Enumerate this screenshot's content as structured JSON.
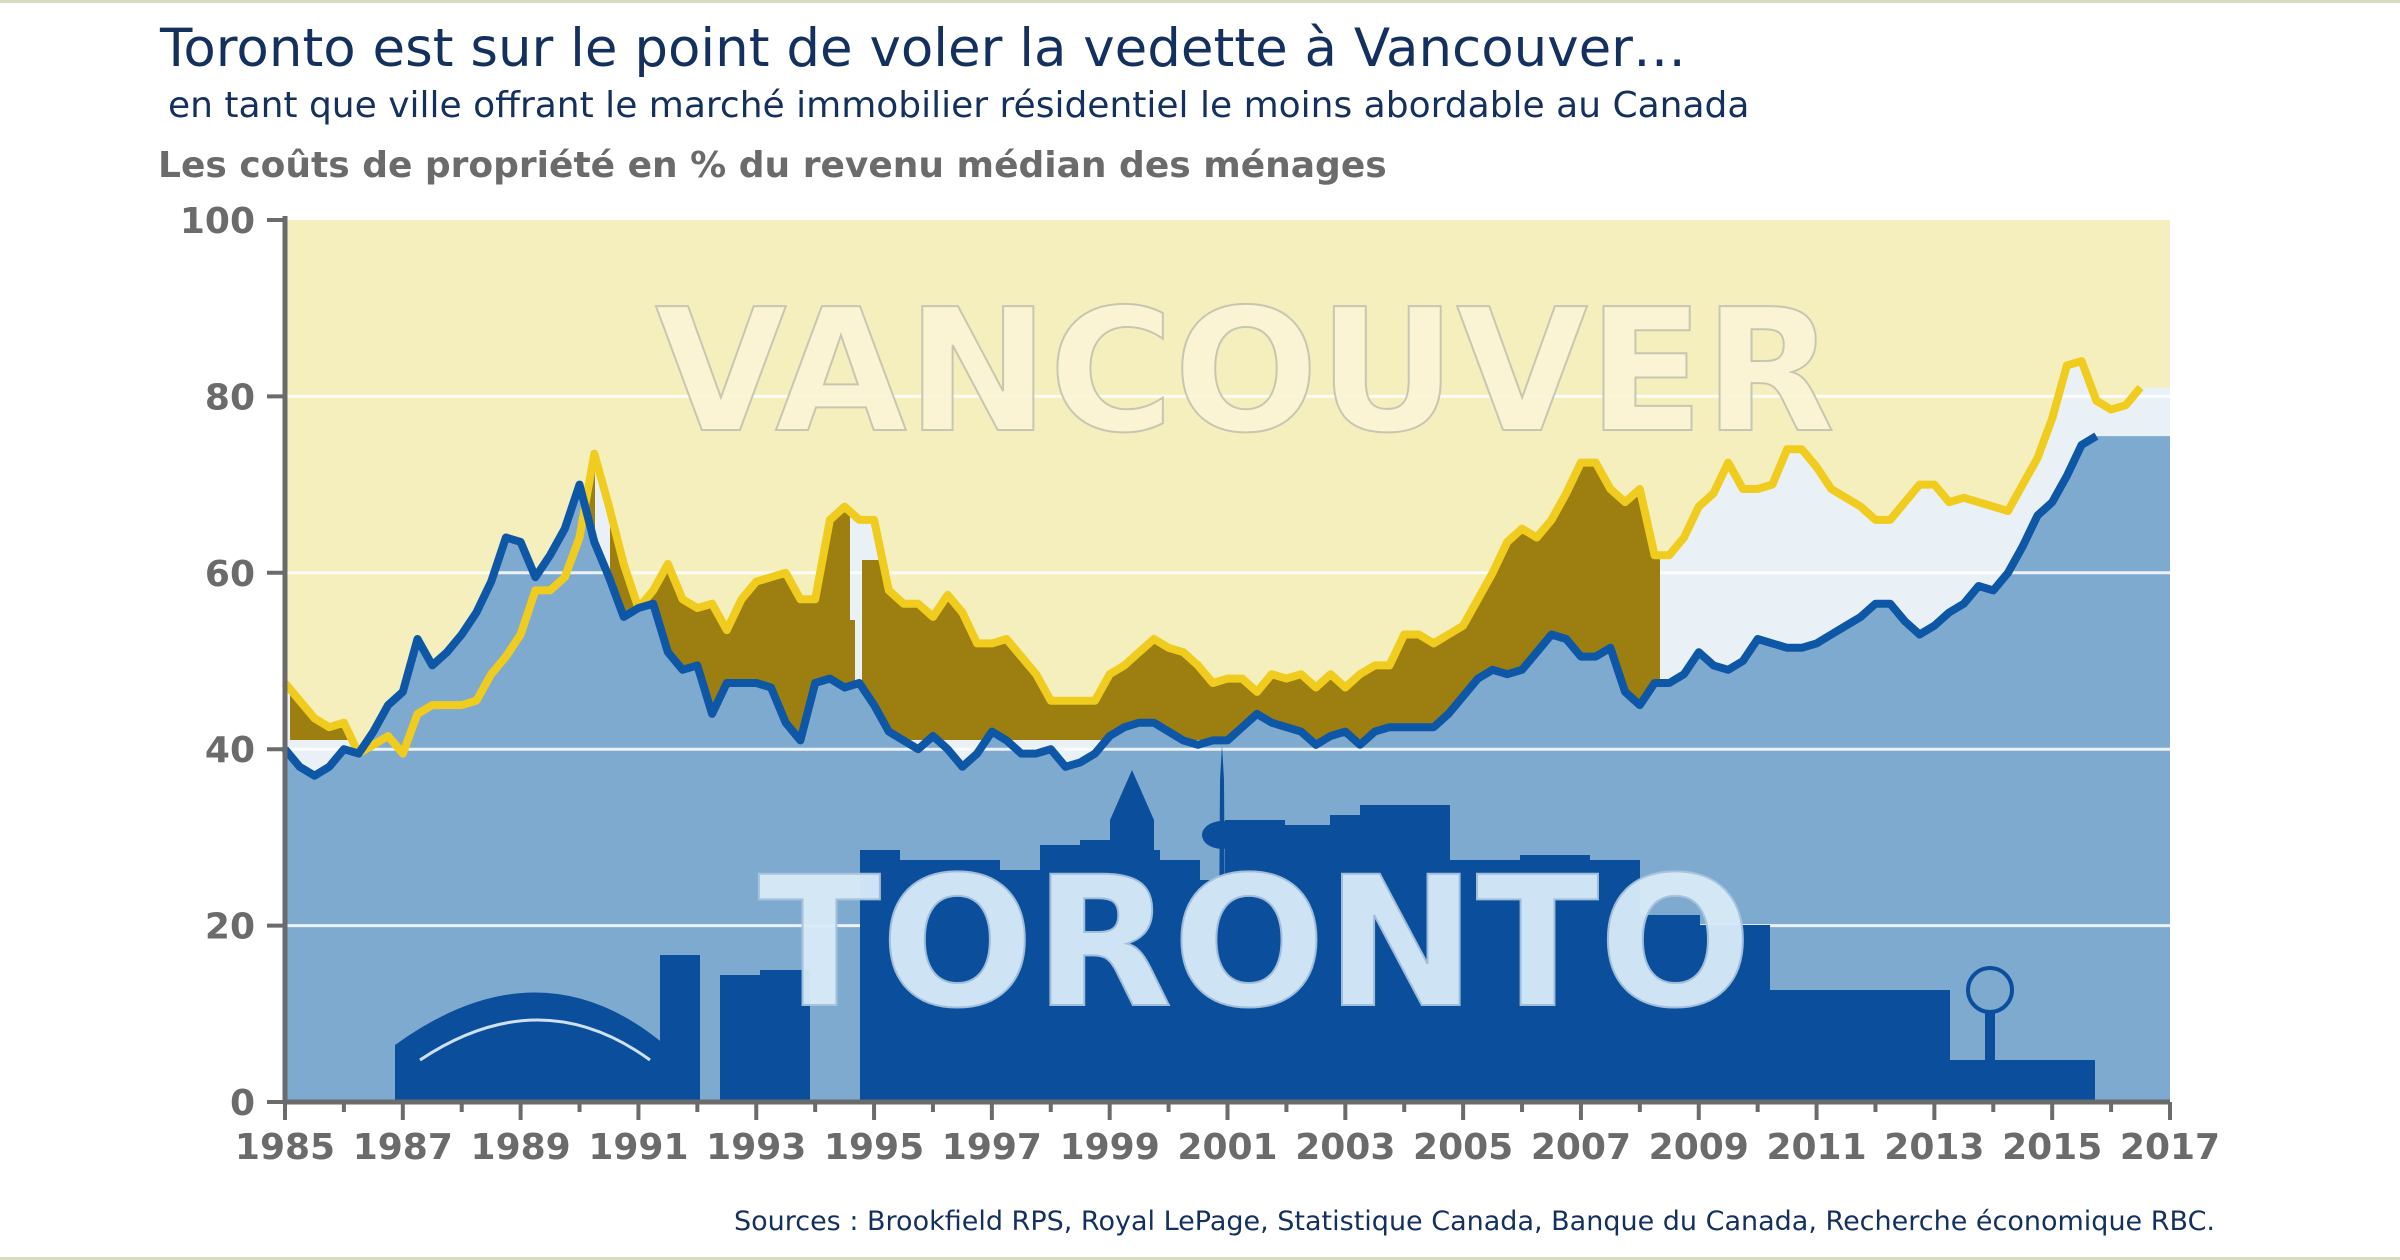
{
  "title": "Toronto est sur le point de voler la vedette à Vancouver…",
  "subtitle": "en tant que ville offrant le marché immobilier résidentiel le moins abordable au Canada",
  "source": "Sources : Brookfield RPS, Royal LePage, Statistique Canada, Banque du Canada, Recherche économique RBC.",
  "colors": {
    "vancouver_line": "#f0cc1e",
    "toronto_line": "#0d57a6",
    "top_band": "#f5eebd",
    "mid_band": "#eaf1f6",
    "toronto_area": "#7faad0",
    "vancouver_skyline": "#9c7f10",
    "toronto_skyline": "#0b4f9c"
  },
  "chart_data": {
    "type": "line",
    "title": "Toronto est sur le point de voler la vedette à Vancouver…",
    "subtitle": "en tant que ville offrant le marché immobilier résidentiel le moins abordable au Canada",
    "ylabel": "Les coûts de propriété en % du revenu médian des ménages",
    "xlabel": "",
    "ylim": [
      0,
      100
    ],
    "xlim": [
      1985,
      2017
    ],
    "yticks": [
      0,
      20,
      40,
      60,
      80,
      100
    ],
    "xticks": [
      1985,
      1987,
      1989,
      1991,
      1993,
      1995,
      1997,
      1999,
      2001,
      2003,
      2005,
      2007,
      2009,
      2011,
      2013,
      2015,
      2017
    ],
    "grid": true,
    "series": [
      {
        "name": "VANCOUVER",
        "points": [
          [
            1985.0,
            47.5
          ],
          [
            1985.25,
            45.5
          ],
          [
            1985.5,
            43.5
          ],
          [
            1985.75,
            42.5
          ],
          [
            1986.0,
            43.0
          ],
          [
            1986.25,
            39.5
          ],
          [
            1986.5,
            40.5
          ],
          [
            1986.75,
            41.5
          ],
          [
            1987.0,
            39.5
          ],
          [
            1987.25,
            44.0
          ],
          [
            1987.5,
            45.0
          ],
          [
            1987.75,
            45.0
          ],
          [
            1988.0,
            45.0
          ],
          [
            1988.25,
            45.5
          ],
          [
            1988.5,
            48.5
          ],
          [
            1988.75,
            50.5
          ],
          [
            1989.0,
            53.0
          ],
          [
            1989.25,
            58.0
          ],
          [
            1989.5,
            58.0
          ],
          [
            1989.75,
            59.5
          ],
          [
            1990.0,
            64.0
          ],
          [
            1990.25,
            73.5
          ],
          [
            1990.5,
            67.5
          ],
          [
            1990.75,
            61.0
          ],
          [
            1991.0,
            56.0
          ],
          [
            1991.25,
            58.0
          ],
          [
            1991.5,
            61.0
          ],
          [
            1991.75,
            57.0
          ],
          [
            1992.0,
            56.0
          ],
          [
            1992.25,
            56.5
          ],
          [
            1992.5,
            53.5
          ],
          [
            1992.75,
            57.0
          ],
          [
            1993.0,
            59.0
          ],
          [
            1993.25,
            59.5
          ],
          [
            1993.5,
            60.0
          ],
          [
            1993.75,
            57.0
          ],
          [
            1994.0,
            57.0
          ],
          [
            1994.25,
            66.0
          ],
          [
            1994.5,
            67.5
          ],
          [
            1994.75,
            66.0
          ],
          [
            1995.0,
            66.0
          ],
          [
            1995.25,
            58.0
          ],
          [
            1995.5,
            56.5
          ],
          [
            1995.75,
            56.5
          ],
          [
            1996.0,
            55.0
          ],
          [
            1996.25,
            57.5
          ],
          [
            1996.5,
            55.5
          ],
          [
            1996.75,
            52.0
          ],
          [
            1997.0,
            52.0
          ],
          [
            1997.25,
            52.5
          ],
          [
            1997.5,
            50.5
          ],
          [
            1997.75,
            48.5
          ],
          [
            1998.0,
            45.5
          ],
          [
            1998.25,
            45.5
          ],
          [
            1998.5,
            45.5
          ],
          [
            1998.75,
            45.5
          ],
          [
            1999.0,
            48.5
          ],
          [
            1999.25,
            49.5
          ],
          [
            1999.5,
            51.0
          ],
          [
            1999.75,
            52.5
          ],
          [
            2000.0,
            51.5
          ],
          [
            2000.25,
            51.0
          ],
          [
            2000.5,
            49.5
          ],
          [
            2000.75,
            47.5
          ],
          [
            2001.0,
            48.0
          ],
          [
            2001.25,
            48.0
          ],
          [
            2001.5,
            46.5
          ],
          [
            2001.75,
            48.5
          ],
          [
            2002.0,
            48.0
          ],
          [
            2002.25,
            48.5
          ],
          [
            2002.5,
            47.0
          ],
          [
            2002.75,
            48.5
          ],
          [
            2003.0,
            47.0
          ],
          [
            2003.25,
            48.5
          ],
          [
            2003.5,
            49.5
          ],
          [
            2003.75,
            49.5
          ],
          [
            2004.0,
            53.0
          ],
          [
            2004.25,
            53.0
          ],
          [
            2004.5,
            52.0
          ],
          [
            2004.75,
            53.0
          ],
          [
            2005.0,
            54.0
          ],
          [
            2005.25,
            57.0
          ],
          [
            2005.5,
            60.0
          ],
          [
            2005.75,
            63.5
          ],
          [
            2006.0,
            65.0
          ],
          [
            2006.25,
            64.0
          ],
          [
            2006.5,
            66.0
          ],
          [
            2006.75,
            69.0
          ],
          [
            2007.0,
            72.5
          ],
          [
            2007.25,
            72.5
          ],
          [
            2007.5,
            69.5
          ],
          [
            2007.75,
            68.0
          ],
          [
            2008.0,
            69.5
          ],
          [
            2008.25,
            62.0
          ],
          [
            2008.5,
            62.0
          ],
          [
            2008.75,
            64.0
          ],
          [
            2009.0,
            67.5
          ],
          [
            2009.25,
            69.0
          ],
          [
            2009.5,
            72.5
          ],
          [
            2009.75,
            69.5
          ],
          [
            2010.0,
            69.5
          ],
          [
            2010.25,
            70.0
          ],
          [
            2010.5,
            74.0
          ],
          [
            2010.75,
            74.0
          ],
          [
            2011.0,
            72.0
          ],
          [
            2011.25,
            69.5
          ],
          [
            2011.5,
            68.5
          ],
          [
            2011.75,
            67.5
          ],
          [
            2012.0,
            66.0
          ],
          [
            2012.25,
            66.0
          ],
          [
            2012.5,
            68.0
          ],
          [
            2012.75,
            70.0
          ],
          [
            2013.0,
            70.0
          ],
          [
            2013.25,
            68.0
          ],
          [
            2013.5,
            68.5
          ],
          [
            2013.75,
            68.0
          ],
          [
            2014.0,
            67.5
          ],
          [
            2014.25,
            67.0
          ],
          [
            2014.5,
            70.0
          ],
          [
            2014.75,
            73.0
          ],
          [
            2015.0,
            77.5
          ],
          [
            2015.25,
            83.5
          ],
          [
            2015.5,
            84.0
          ],
          [
            2015.75,
            79.5
          ],
          [
            2016.0,
            78.5
          ],
          [
            2016.25,
            79.0
          ],
          [
            2016.5,
            81.0
          ]
        ]
      },
      {
        "name": "TORONTO",
        "points": [
          [
            1985.0,
            40.0
          ],
          [
            1985.25,
            38.0
          ],
          [
            1985.5,
            37.0
          ],
          [
            1985.75,
            38.0
          ],
          [
            1986.0,
            40.0
          ],
          [
            1986.25,
            39.5
          ],
          [
            1986.5,
            42.0
          ],
          [
            1986.75,
            45.0
          ],
          [
            1987.0,
            46.5
          ],
          [
            1987.25,
            52.5
          ],
          [
            1987.5,
            49.5
          ],
          [
            1987.75,
            51.0
          ],
          [
            1988.0,
            53.0
          ],
          [
            1988.25,
            55.5
          ],
          [
            1988.5,
            59.0
          ],
          [
            1988.75,
            64.0
          ],
          [
            1989.0,
            63.5
          ],
          [
            1989.25,
            59.5
          ],
          [
            1989.5,
            62.0
          ],
          [
            1989.75,
            65.0
          ],
          [
            1990.0,
            70.0
          ],
          [
            1990.25,
            63.5
          ],
          [
            1990.5,
            59.5
          ],
          [
            1990.75,
            55.0
          ],
          [
            1991.0,
            56.0
          ],
          [
            1991.25,
            56.5
          ],
          [
            1991.5,
            51.0
          ],
          [
            1991.75,
            49.0
          ],
          [
            1992.0,
            49.5
          ],
          [
            1992.25,
            44.0
          ],
          [
            1992.5,
            47.5
          ],
          [
            1992.75,
            47.5
          ],
          [
            1993.0,
            47.5
          ],
          [
            1993.25,
            47.0
          ],
          [
            1993.5,
            43.0
          ],
          [
            1993.75,
            41.0
          ],
          [
            1994.0,
            47.5
          ],
          [
            1994.25,
            48.0
          ],
          [
            1994.5,
            47.0
          ],
          [
            1994.75,
            47.5
          ],
          [
            1995.0,
            45.0
          ],
          [
            1995.25,
            42.0
          ],
          [
            1995.5,
            41.0
          ],
          [
            1995.75,
            40.0
          ],
          [
            1996.0,
            41.5
          ],
          [
            1996.25,
            40.0
          ],
          [
            1996.5,
            38.0
          ],
          [
            1996.75,
            39.5
          ],
          [
            1997.0,
            42.0
          ],
          [
            1997.25,
            41.0
          ],
          [
            1997.5,
            39.5
          ],
          [
            1997.75,
            39.5
          ],
          [
            1998.0,
            40.0
          ],
          [
            1998.25,
            38.0
          ],
          [
            1998.5,
            38.5
          ],
          [
            1998.75,
            39.5
          ],
          [
            1999.0,
            41.5
          ],
          [
            1999.25,
            42.5
          ],
          [
            1999.5,
            43.0
          ],
          [
            1999.75,
            43.0
          ],
          [
            2000.0,
            42.0
          ],
          [
            2000.25,
            41.0
          ],
          [
            2000.5,
            40.5
          ],
          [
            2000.75,
            41.0
          ],
          [
            2001.0,
            41.0
          ],
          [
            2001.25,
            42.5
          ],
          [
            2001.5,
            44.0
          ],
          [
            2001.75,
            43.0
          ],
          [
            2002.0,
            42.5
          ],
          [
            2002.25,
            42.0
          ],
          [
            2002.5,
            40.5
          ],
          [
            2002.75,
            41.5
          ],
          [
            2003.0,
            42.0
          ],
          [
            2003.25,
            40.5
          ],
          [
            2003.5,
            42.0
          ],
          [
            2003.75,
            42.5
          ],
          [
            2004.0,
            42.5
          ],
          [
            2004.25,
            42.5
          ],
          [
            2004.5,
            42.5
          ],
          [
            2004.75,
            44.0
          ],
          [
            2005.0,
            46.0
          ],
          [
            2005.25,
            48.0
          ],
          [
            2005.5,
            49.0
          ],
          [
            2005.75,
            48.5
          ],
          [
            2006.0,
            49.0
          ],
          [
            2006.25,
            51.0
          ],
          [
            2006.5,
            53.0
          ],
          [
            2006.75,
            52.5
          ],
          [
            2007.0,
            50.5
          ],
          [
            2007.25,
            50.5
          ],
          [
            2007.5,
            51.5
          ],
          [
            2007.75,
            46.5
          ],
          [
            2008.0,
            45.0
          ],
          [
            2008.25,
            47.5
          ],
          [
            2008.5,
            47.5
          ],
          [
            2008.75,
            48.5
          ],
          [
            2009.0,
            51.0
          ],
          [
            2009.25,
            49.5
          ],
          [
            2009.5,
            49.0
          ],
          [
            2009.75,
            50.0
          ],
          [
            2010.0,
            52.5
          ],
          [
            2010.25,
            52.0
          ],
          [
            2010.5,
            51.5
          ],
          [
            2010.75,
            51.5
          ],
          [
            2011.0,
            52.0
          ],
          [
            2011.25,
            53.0
          ],
          [
            2011.5,
            54.0
          ],
          [
            2011.75,
            55.0
          ],
          [
            2012.0,
            56.5
          ],
          [
            2012.25,
            56.5
          ],
          [
            2012.5,
            54.5
          ],
          [
            2012.75,
            53.0
          ],
          [
            2013.0,
            54.0
          ],
          [
            2013.25,
            55.5
          ],
          [
            2013.5,
            56.5
          ],
          [
            2013.75,
            58.5
          ],
          [
            2014.0,
            58.0
          ],
          [
            2014.25,
            60.0
          ],
          [
            2014.5,
            63.0
          ],
          [
            2014.75,
            66.5
          ],
          [
            2015.0,
            68.0
          ],
          [
            2015.25,
            71.0
          ],
          [
            2015.5,
            74.5
          ],
          [
            2015.75,
            75.5
          ]
        ]
      }
    ],
    "annotations": [
      "VANCOUVER",
      "TORONTO"
    ]
  }
}
